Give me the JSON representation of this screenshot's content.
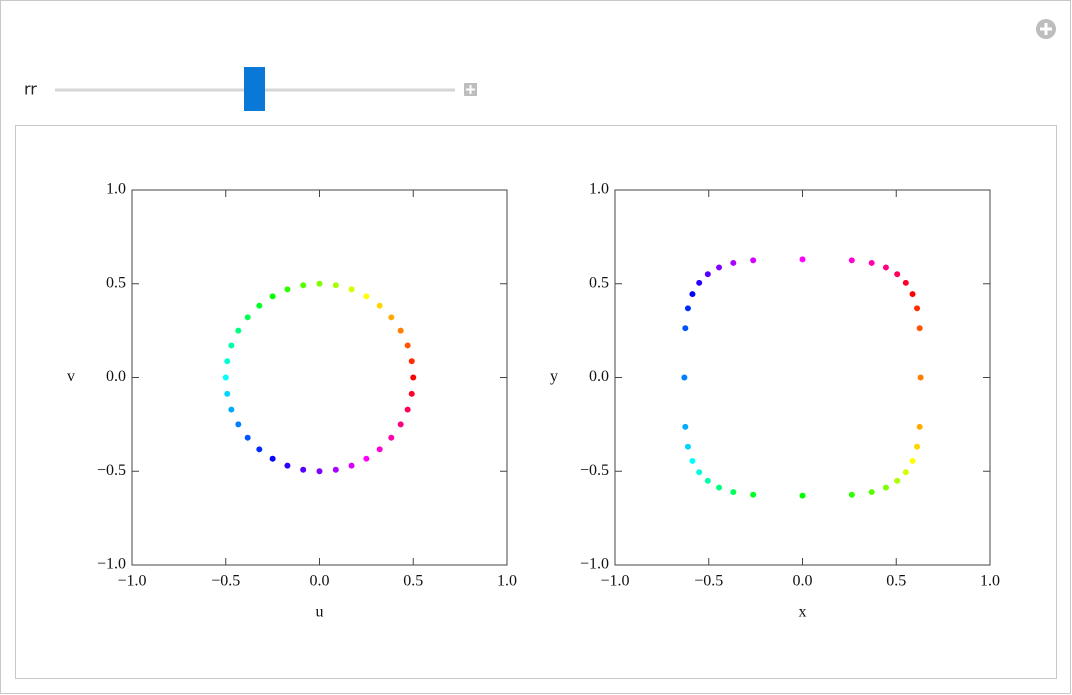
{
  "controls": {
    "slider_label": "rr"
  },
  "chart_data": [
    {
      "type": "scatter",
      "xlabel": "u",
      "ylabel": "v",
      "x": [
        0.5,
        0.492,
        0.47,
        0.433,
        0.383,
        0.321,
        0.25,
        0.171,
        0.087,
        0,
        -0.087,
        -0.171,
        -0.25,
        -0.321,
        -0.383,
        -0.433,
        -0.47,
        -0.492,
        -0.5,
        -0.492,
        -0.47,
        -0.433,
        -0.383,
        -0.321,
        -0.25,
        -0.171,
        -0.087,
        0,
        0.087,
        0.171,
        0.25,
        0.321,
        0.383,
        0.433,
        0.47,
        0.492
      ],
      "y": [
        0,
        0.087,
        0.171,
        0.25,
        0.321,
        0.383,
        0.433,
        0.47,
        0.492,
        0.5,
        0.492,
        0.47,
        0.433,
        0.383,
        0.321,
        0.25,
        0.171,
        0.087,
        0,
        -0.087,
        -0.171,
        -0.25,
        -0.321,
        -0.383,
        -0.433,
        -0.47,
        -0.492,
        -0.5,
        -0.492,
        -0.47,
        -0.433,
        -0.383,
        -0.321,
        -0.25,
        -0.171,
        -0.087
      ],
      "colors": [
        "#ff0000",
        "#ff2a00",
        "#ff5500",
        "#ff8000",
        "#ffaa00",
        "#ffd500",
        "#ffff00",
        "#d4ff00",
        "#aaff00",
        "#80ff00",
        "#55ff00",
        "#2bff00",
        "#00ff00",
        "#00ff2a",
        "#00ff55",
        "#00ff80",
        "#00ffaa",
        "#00ffd5",
        "#00ffff",
        "#00d4ff",
        "#00aaff",
        "#0080ff",
        "#0055ff",
        "#002bff",
        "#0000ff",
        "#2a00ff",
        "#5500ff",
        "#8000ff",
        "#aa00ff",
        "#d500ff",
        "#ff00ff",
        "#ff00d4",
        "#ff00aa",
        "#ff0080",
        "#ff0055",
        "#ff002b"
      ],
      "xlim": [
        -1,
        1
      ],
      "ylim": [
        -1,
        1
      ],
      "xticks": [
        {
          "value": -1,
          "label": "−1.0"
        },
        {
          "value": -0.5,
          "label": "−0.5"
        },
        {
          "value": 0,
          "label": "0.0"
        },
        0.5,
        {
          "value": 1,
          "label": "1.0"
        }
      ],
      "yticks": [
        {
          "value": -1,
          "label": "−1.0"
        },
        {
          "value": -0.5,
          "label": "−0.5"
        },
        {
          "value": 0,
          "label": "0.0"
        },
        0.5,
        {
          "value": 1,
          "label": "1.0"
        }
      ]
    },
    {
      "type": "scatter",
      "xlabel": "x",
      "ylabel": "y",
      "x": [
        0.63,
        0.625,
        0.611,
        0.587,
        0.551,
        0.505,
        0.445,
        0.369,
        0.263,
        0,
        -0.263,
        -0.369,
        -0.445,
        -0.505,
        -0.551,
        -0.587,
        -0.611,
        -0.625,
        -0.63,
        -0.625,
        -0.611,
        -0.587,
        -0.551,
        -0.505,
        -0.445,
        -0.369,
        -0.263,
        0,
        0.263,
        0.369,
        0.445,
        0.505,
        0.551,
        0.587,
        0.611,
        0.625
      ],
      "y": [
        0,
        0.263,
        0.369,
        0.445,
        0.505,
        0.551,
        0.587,
        0.611,
        0.625,
        0.63,
        0.625,
        0.611,
        0.587,
        0.551,
        0.505,
        0.445,
        0.369,
        0.263,
        0,
        -0.263,
        -0.369,
        -0.445,
        -0.505,
        -0.551,
        -0.587,
        -0.611,
        -0.625,
        -0.63,
        -0.625,
        -0.611,
        -0.587,
        -0.551,
        -0.505,
        -0.445,
        -0.369,
        -0.263
      ],
      "colors": [
        "#ff8000",
        "#ff5500",
        "#ff2a00",
        "#ff0000",
        "#ff002b",
        "#ff0055",
        "#ff0080",
        "#ff00aa",
        "#ff00d4",
        "#ff00ff",
        "#d500ff",
        "#aa00ff",
        "#8000ff",
        "#5500ff",
        "#2a00ff",
        "#0000ff",
        "#002bff",
        "#0055ff",
        "#0080ff",
        "#00aaff",
        "#00d4ff",
        "#00ffff",
        "#00ffd5",
        "#00ffaa",
        "#00ff80",
        "#00ff55",
        "#00ff2a",
        "#00ff00",
        "#2bff00",
        "#55ff00",
        "#80ff00",
        "#aaff00",
        "#d4ff00",
        "#ffff00",
        "#ffd500",
        "#ffaa00"
      ],
      "xlim": [
        -1,
        1
      ],
      "ylim": [
        -1,
        1
      ],
      "xticks": [
        {
          "value": -1,
          "label": "−1.0"
        },
        {
          "value": -0.5,
          "label": "−0.5"
        },
        {
          "value": 0,
          "label": "0.0"
        },
        0.5,
        {
          "value": 1,
          "label": "1.0"
        }
      ],
      "yticks": [
        {
          "value": -1,
          "label": "−1.0"
        },
        {
          "value": -0.5,
          "label": "−0.5"
        },
        {
          "value": 0,
          "label": "0.0"
        },
        0.5,
        {
          "value": 1,
          "label": "1.0"
        }
      ]
    }
  ]
}
